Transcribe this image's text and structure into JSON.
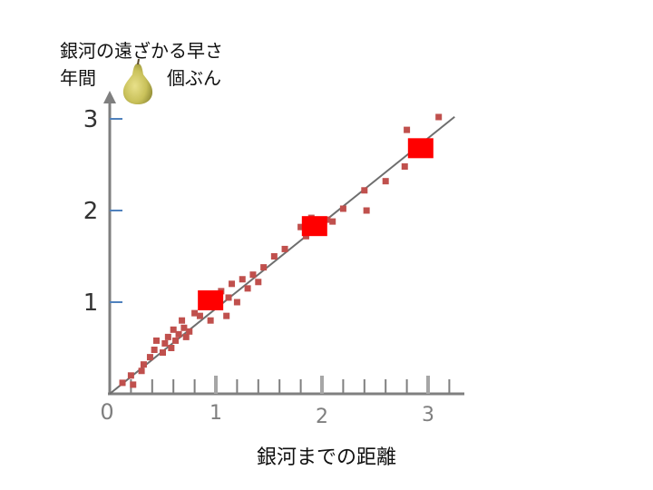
{
  "chart_data": {
    "type": "scatter",
    "title": "",
    "ylabel_line1": "銀河の遠ざかる早さ",
    "ylabel_line2_left": "年間",
    "ylabel_line2_right": "個ぶん",
    "ylabel_icon": "pear-icon",
    "xlabel": "銀河までの距離",
    "xlim": [
      0,
      3.2
    ],
    "ylim": [
      0,
      3.2
    ],
    "x_ticks": [
      "0",
      "1",
      "2",
      "3"
    ],
    "y_ticks": [
      "1",
      "2",
      "3"
    ],
    "grid": false,
    "fit_line": {
      "slope": 0.93,
      "intercept": 0
    },
    "series": [
      {
        "marker": "small-square",
        "color": "#c0504d",
        "x": [
          0.12,
          0.2,
          0.22,
          0.3,
          0.32,
          0.38,
          0.42,
          0.44,
          0.5,
          0.52,
          0.55,
          0.58,
          0.6,
          0.62,
          0.65,
          0.68,
          0.7,
          0.72,
          0.75,
          0.8,
          0.85,
          0.9,
          0.95,
          1.05,
          1.1,
          1.12,
          1.15,
          1.2,
          1.25,
          1.3,
          1.35,
          1.4,
          1.45,
          1.55,
          1.65,
          1.8,
          1.85,
          1.9,
          2.05,
          2.1,
          2.2,
          2.4,
          2.42,
          2.6,
          2.78,
          2.8,
          3.1
        ],
        "y": [
          0.12,
          0.2,
          0.1,
          0.25,
          0.32,
          0.4,
          0.48,
          0.58,
          0.45,
          0.55,
          0.62,
          0.5,
          0.7,
          0.58,
          0.65,
          0.8,
          0.72,
          0.62,
          0.68,
          0.88,
          0.85,
          0.95,
          0.8,
          1.12,
          0.85,
          1.05,
          1.2,
          1.0,
          1.25,
          1.15,
          1.3,
          1.22,
          1.38,
          1.5,
          1.58,
          1.82,
          1.72,
          1.92,
          1.9,
          1.88,
          2.02,
          2.22,
          2.0,
          2.32,
          2.48,
          2.88,
          3.02
        ]
      },
      {
        "marker": "large-square",
        "color": "#ff0000",
        "x": [
          0.95,
          1.93,
          2.93
        ],
        "y": [
          1.02,
          1.83,
          2.68
        ]
      }
    ]
  }
}
